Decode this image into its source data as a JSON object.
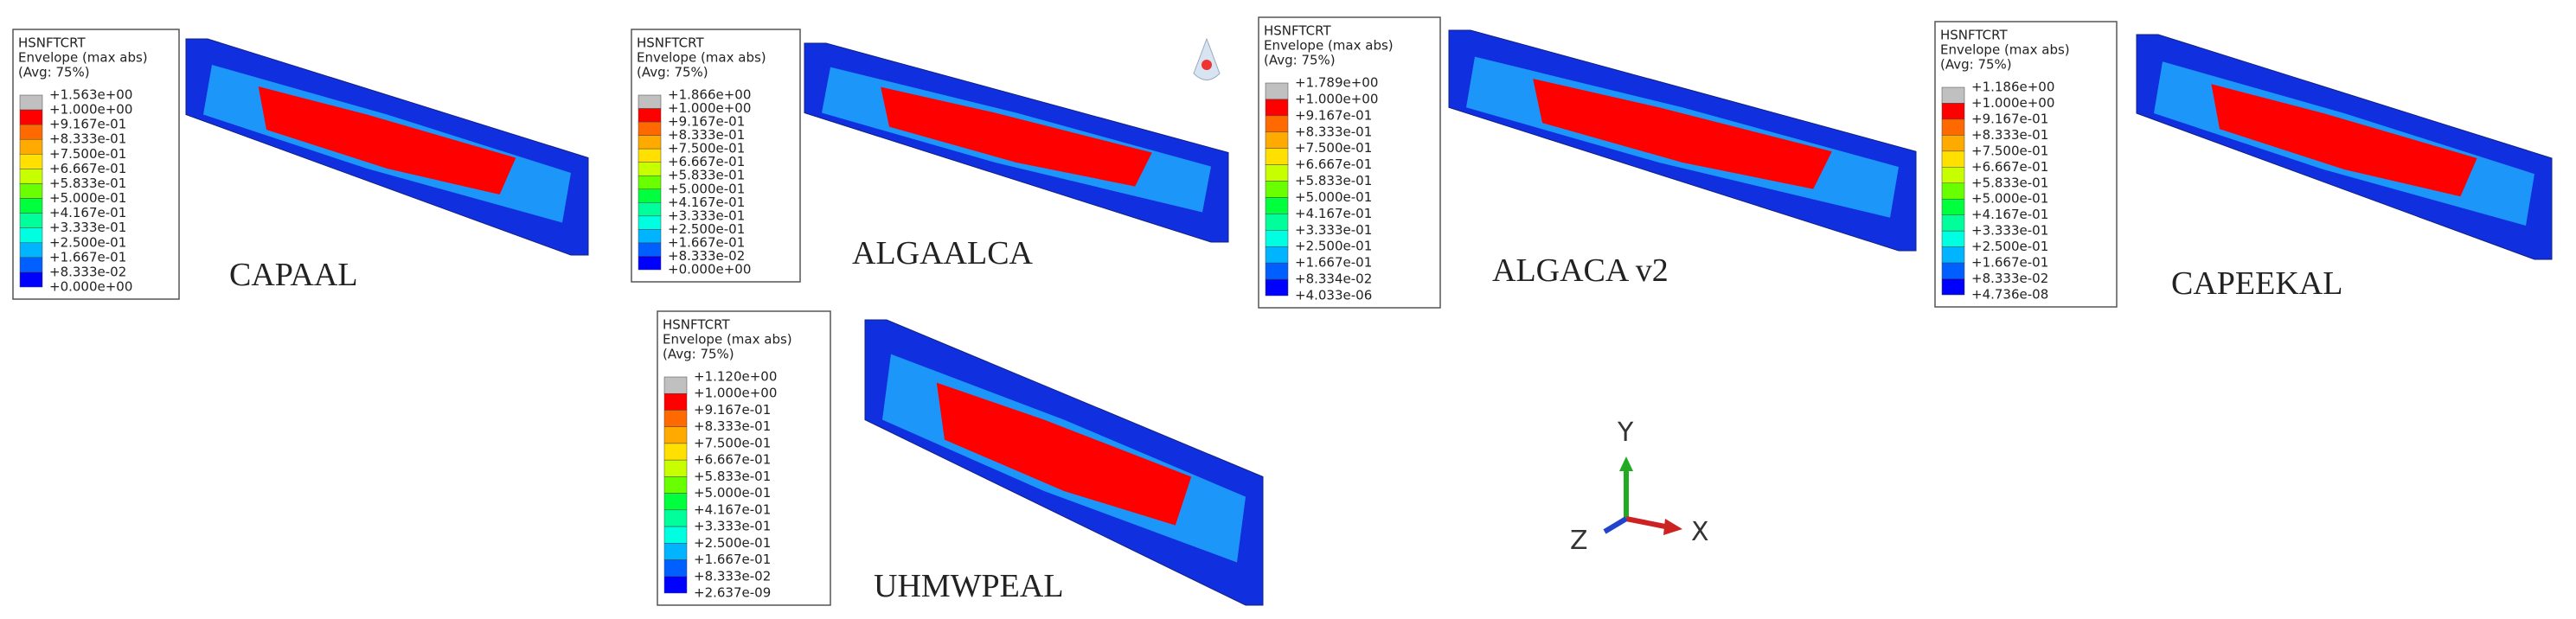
{
  "legend_colors": [
    "#c0c0c0",
    "#ff0000",
    "#ff6a00",
    "#ffaa00",
    "#ffe000",
    "#c8ff00",
    "#6aff00",
    "#00ff3c",
    "#00ff9a",
    "#00ffe0",
    "#00b4ff",
    "#0060ff",
    "#0000ff"
  ],
  "panels": [
    {
      "label": "CAPAAL",
      "legend": {
        "title": [
          "HSNFTCRT",
          "Envelope (max abs)",
          "(Avg: 75%)"
        ],
        "entries": [
          "+1.563e+00",
          "+1.000e+00",
          "+9.167e-01",
          "+8.333e-01",
          "+7.500e-01",
          "+6.667e-01",
          "+5.833e-01",
          "+5.000e-01",
          "+4.167e-01",
          "+3.333e-01",
          "+2.500e-01",
          "+1.667e-01",
          "+8.333e-02",
          "+0.000e+00"
        ]
      }
    },
    {
      "label": "ALGAALCA",
      "legend": {
        "title": [
          "HSNFTCRT",
          "Envelope (max abs)",
          "(Avg: 75%)"
        ],
        "entries": [
          "+1.866e+00",
          "+1.000e+00",
          "+9.167e-01",
          "+8.333e-01",
          "+7.500e-01",
          "+6.667e-01",
          "+5.833e-01",
          "+5.000e-01",
          "+4.167e-01",
          "+3.333e-01",
          "+2.500e-01",
          "+1.667e-01",
          "+8.333e-02",
          "+0.000e+00"
        ]
      }
    },
    {
      "label": "ALGACA v2",
      "legend": {
        "title": [
          "HSNFTCRT",
          "Envelope (max abs)",
          "(Avg: 75%)"
        ],
        "entries": [
          "+1.789e+00",
          "+1.000e+00",
          "+9.167e-01",
          "+8.333e-01",
          "+7.500e-01",
          "+6.667e-01",
          "+5.833e-01",
          "+5.000e-01",
          "+4.167e-01",
          "+3.333e-01",
          "+2.500e-01",
          "+1.667e-01",
          "+8.334e-02",
          "+4.033e-06"
        ]
      }
    },
    {
      "label": "CAPEEKAL",
      "legend": {
        "title": [
          "HSNFTCRT",
          "Envelope (max abs)",
          "(Avg: 75%)"
        ],
        "entries": [
          "+1.186e+00",
          "+1.000e+00",
          "+9.167e-01",
          "+8.333e-01",
          "+7.500e-01",
          "+6.667e-01",
          "+5.833e-01",
          "+5.000e-01",
          "+4.167e-01",
          "+3.333e-01",
          "+2.500e-01",
          "+1.667e-01",
          "+8.333e-02",
          "+4.736e-08"
        ]
      }
    },
    {
      "label": "UHMWPEAL",
      "legend": {
        "title": [
          "HSNFTCRT",
          "Envelope (max abs)",
          "(Avg: 75%)"
        ],
        "entries": [
          "+1.120e+00",
          "+1.000e+00",
          "+9.167e-01",
          "+8.333e-01",
          "+7.500e-01",
          "+6.667e-01",
          "+5.833e-01",
          "+5.000e-01",
          "+4.167e-01",
          "+3.333e-01",
          "+2.500e-01",
          "+1.667e-01",
          "+8.333e-02",
          "+2.637e-09"
        ]
      }
    }
  ],
  "triad": {
    "y": "Y",
    "z": "Z",
    "x": "X"
  }
}
